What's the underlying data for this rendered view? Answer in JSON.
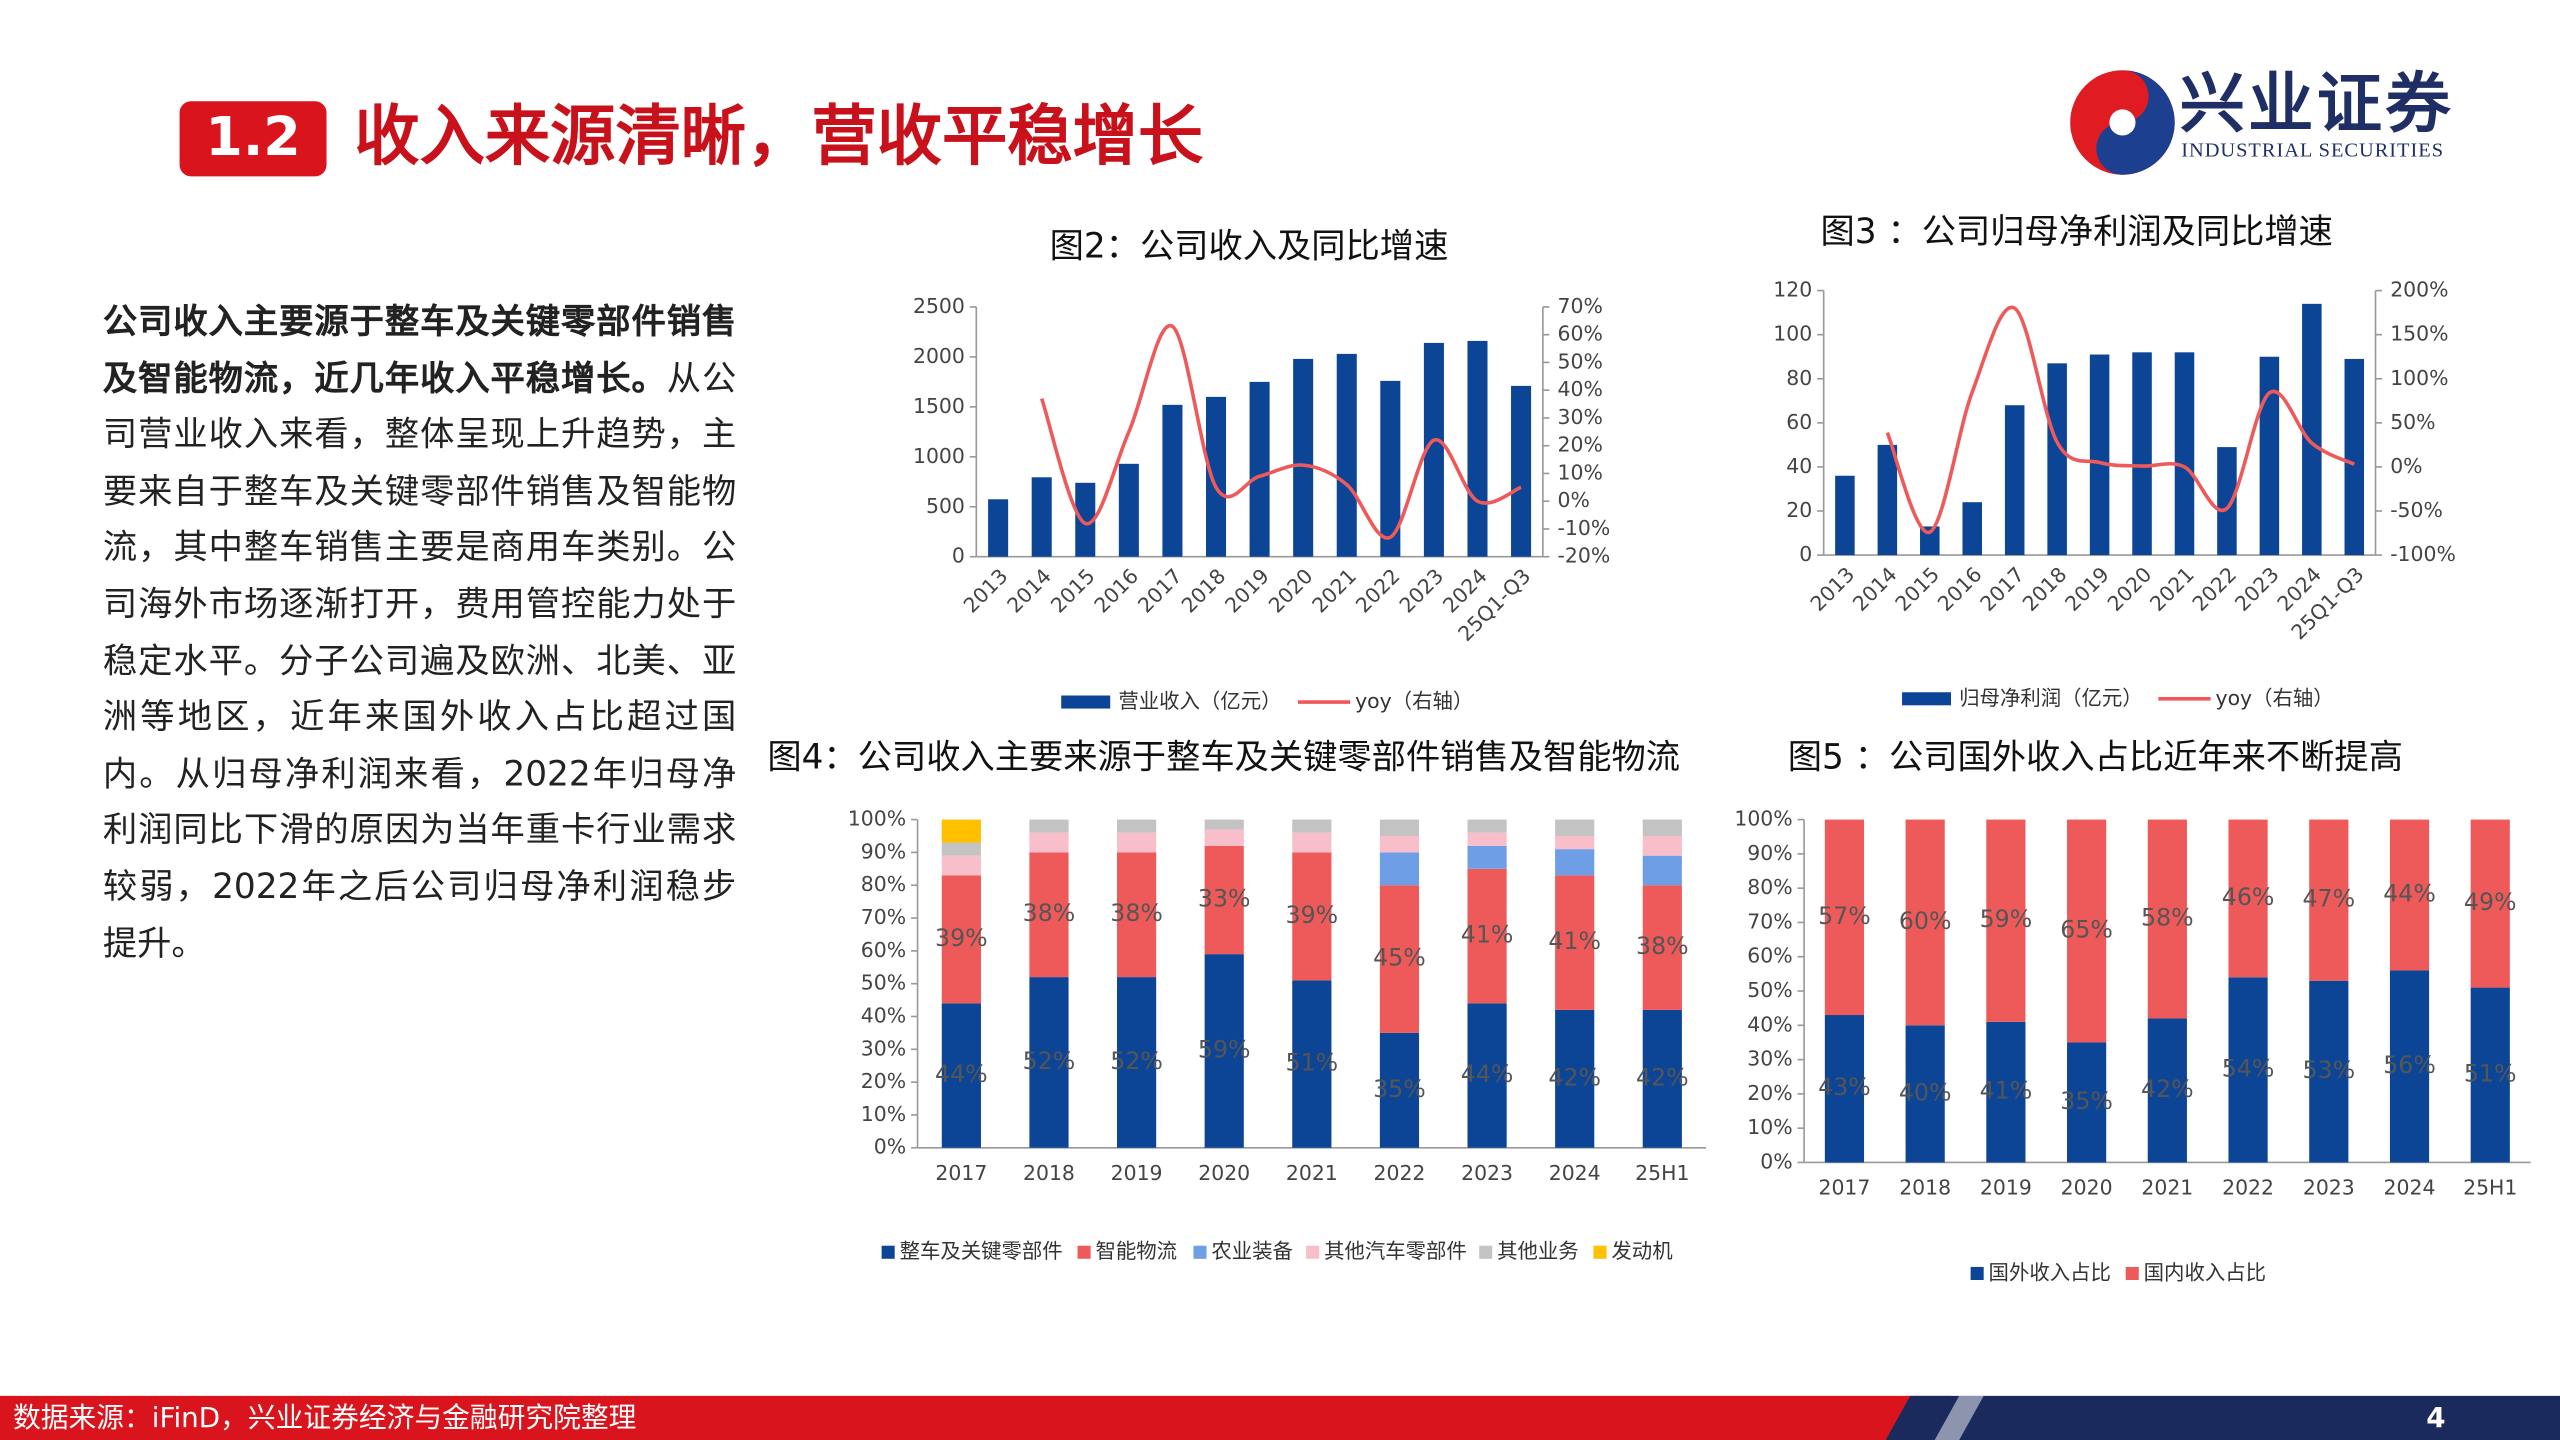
{
  "header": {
    "section": "1.2",
    "title": "收入来源清晰，营收平稳增长"
  },
  "logo": {
    "name": "兴业证券",
    "name_en": "INDUSTRIAL SECURITIES"
  },
  "body": {
    "lead": "公司收入主要源于整车及关键零部件销售及智能物流，近几年收入平稳增长。",
    "text": "从公司营业收入来看，整体呈现上升趋势，主要来自于整车及关键零部件销售及智能物流，其中整车销售主要是商用车类别。公司海外市场逐渐打开，费用管控能力处于稳定水平。分子公司遍及欧洲、北美、亚洲等地区，近年来国外收入占比超过国内。从归母净利润来看，2022年归母净利润同比下滑的原因为当年重卡行业需求较弱，2022年之后公司归母净利润稳步提升。"
  },
  "chart_data": [
    {
      "type": "combo",
      "title": "图2：公司收入及同比增速",
      "categories": [
        "2013",
        "2014",
        "2015",
        "2016",
        "2017",
        "2018",
        "2019",
        "2020",
        "2021",
        "2022",
        "2023",
        "2024",
        "25Q1-Q3"
      ],
      "series": [
        {
          "name": "营业收入（亿元）",
          "type": "bar",
          "color": "#0c4596",
          "values": [
            575,
            795,
            740,
            930,
            1520,
            1600,
            1750,
            1980,
            2030,
            1760,
            2140,
            2160,
            1710
          ]
        },
        {
          "name": "yoy（右轴）",
          "type": "line",
          "axis": "y2",
          "color": "#ee5a5a",
          "values": [
            null,
            37,
            -8,
            25,
            63,
            5,
            9,
            13,
            6,
            -13,
            22,
            0,
            5
          ]
        }
      ],
      "ylim": [
        0,
        2500
      ],
      "yticks": [
        0,
        500,
        1000,
        1500,
        2000,
        2500
      ],
      "y2lim": [
        -20,
        70
      ],
      "y2ticks": [
        {
          "value": -20,
          "label": "-20%"
        },
        {
          "value": -10,
          "label": "-10%"
        },
        {
          "value": 0,
          "label": "0%"
        },
        {
          "value": 10,
          "label": "10%"
        },
        {
          "value": 20,
          "label": "20%"
        },
        {
          "value": 30,
          "label": "30%"
        },
        {
          "value": 40,
          "label": "40%"
        },
        {
          "value": 50,
          "label": "50%"
        },
        {
          "value": 60,
          "label": "60%"
        },
        {
          "value": 70,
          "label": "70%"
        }
      ],
      "grid": false
    },
    {
      "type": "combo",
      "title": "图3 ：公司归母净利润及同比增速",
      "categories": [
        "2013",
        "2014",
        "2015",
        "2016",
        "2017",
        "2018",
        "2019",
        "2020",
        "2021",
        "2022",
        "2023",
        "2024",
        "25Q1-Q3"
      ],
      "series": [
        {
          "name": "归母净利润（亿元）",
          "type": "bar",
          "color": "#0c4596",
          "values": [
            36,
            50,
            13,
            24,
            68,
            87,
            91,
            92,
            92,
            49,
            90,
            114,
            89
          ]
        },
        {
          "name": "yoy（右轴）",
          "type": "line",
          "axis": "y2",
          "color": "#ee5a5a",
          "values": [
            null,
            39,
            -74,
            85,
            180,
            28,
            5,
            1,
            0,
            -47,
            84,
            27,
            3
          ]
        }
      ],
      "ylim": [
        0,
        120
      ],
      "yticks": [
        0,
        20,
        40,
        60,
        80,
        100,
        120
      ],
      "y2lim": [
        -100,
        200
      ],
      "y2ticks": [
        {
          "value": -100,
          "label": "-100%"
        },
        {
          "value": -50,
          "label": "-50%"
        },
        {
          "value": 0,
          "label": "0%"
        },
        {
          "value": 50,
          "label": "50%"
        },
        {
          "value": 100,
          "label": "100%"
        },
        {
          "value": 150,
          "label": "150%"
        },
        {
          "value": 200,
          "label": "200%"
        }
      ],
      "grid": false
    },
    {
      "type": "stacked_bar",
      "title": "图4：公司收入主要来源于整车及关键零部件销售及智能物流",
      "categories": [
        "2017",
        "2018",
        "2019",
        "2020",
        "2021",
        "2022",
        "2023",
        "2024",
        "25H1"
      ],
      "series": [
        {
          "name": "整车及关键零部件",
          "color": "#0c4596",
          "values": [
            44,
            52,
            52,
            59,
            51,
            35,
            44,
            42,
            42
          ],
          "value_labels": [
            "44%",
            "52%",
            "52%",
            "59%",
            "51%",
            "35%",
            "44%",
            "42%",
            "42%"
          ]
        },
        {
          "name": "智能物流",
          "color": "#ee5a5a",
          "values": [
            39,
            38,
            38,
            33,
            39,
            45,
            41,
            41,
            38
          ],
          "value_labels": [
            "39%",
            "38%",
            "38%",
            "33%",
            "39%",
            "45%",
            "41%",
            "41%",
            "38%"
          ]
        },
        {
          "name": "农业装备",
          "color": "#6e9fe6",
          "values": [
            0,
            0,
            0,
            0,
            0,
            10,
            7,
            8,
            9
          ]
        },
        {
          "name": "其他汽车零部件",
          "color": "#f8bfcb",
          "values": [
            6,
            6,
            6,
            5,
            6,
            5,
            4,
            4,
            6
          ]
        },
        {
          "name": "其他业务",
          "color": "#c3c3c3",
          "values": [
            4,
            4,
            4,
            3,
            4,
            5,
            4,
            5,
            5
          ]
        },
        {
          "name": "发动机",
          "color": "#ffc000",
          "values": [
            7,
            0,
            0,
            0,
            0,
            0,
            0,
            0,
            0
          ]
        }
      ],
      "ylim": [
        0,
        100
      ],
      "yticks": [
        {
          "value": 0,
          "label": "0%"
        },
        {
          "value": 10,
          "label": "10%"
        },
        {
          "value": 20,
          "label": "20%"
        },
        {
          "value": 30,
          "label": "30%"
        },
        {
          "value": 40,
          "label": "40%"
        },
        {
          "value": 50,
          "label": "50%"
        },
        {
          "value": 60,
          "label": "60%"
        },
        {
          "value": 70,
          "label": "70%"
        },
        {
          "value": 80,
          "label": "80%"
        },
        {
          "value": 90,
          "label": "90%"
        },
        {
          "value": 100,
          "label": "100%"
        }
      ],
      "grid": false
    },
    {
      "type": "stacked_bar",
      "title": "图5 ：公司国外收入占比近年来不断提高",
      "categories": [
        "2017",
        "2018",
        "2019",
        "2020",
        "2021",
        "2022",
        "2023",
        "2024",
        "25H1"
      ],
      "series": [
        {
          "name": "国外收入占比",
          "color": "#0c4596",
          "values": [
            43,
            40,
            41,
            35,
            42,
            54,
            53,
            56,
            51
          ],
          "value_labels": [
            "43%",
            "40%",
            "41%",
            "35%",
            "42%",
            "54%",
            "53%",
            "56%",
            "51%"
          ]
        },
        {
          "name": "国内收入占比",
          "color": "#ee5a5a",
          "values": [
            57,
            60,
            59,
            65,
            58,
            46,
            47,
            44,
            49
          ],
          "value_labels": [
            "57%",
            "60%",
            "59%",
            "65%",
            "58%",
            "46%",
            "47%",
            "44%",
            "49%"
          ]
        }
      ],
      "ylim": [
        0,
        100
      ],
      "yticks": [
        {
          "value": 0,
          "label": "0%"
        },
        {
          "value": 10,
          "label": "10%"
        },
        {
          "value": 20,
          "label": "20%"
        },
        {
          "value": 30,
          "label": "30%"
        },
        {
          "value": 40,
          "label": "40%"
        },
        {
          "value": 50,
          "label": "50%"
        },
        {
          "value": 60,
          "label": "60%"
        },
        {
          "value": 70,
          "label": "70%"
        },
        {
          "value": 80,
          "label": "80%"
        },
        {
          "value": 90,
          "label": "90%"
        },
        {
          "value": 100,
          "label": "100%"
        }
      ],
      "grid": false
    }
  ],
  "footer": {
    "source": "数据来源：iFinD，兴业证券经济与金融研究院整理",
    "page": 4
  }
}
